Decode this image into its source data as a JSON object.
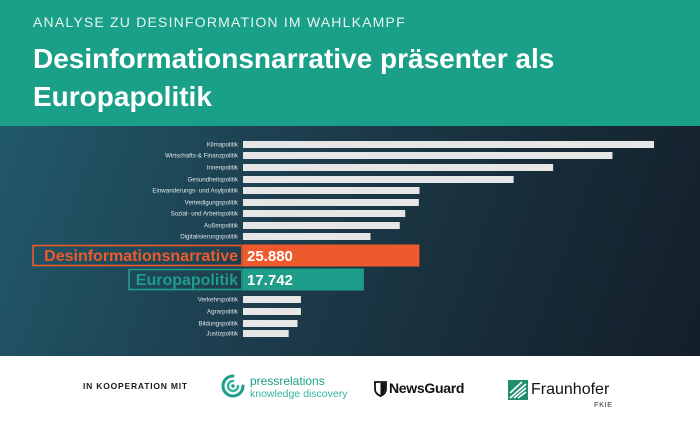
{
  "header": {
    "kicker": "ANALYSE ZU DESINFORMATION IM WAHLKAMPF",
    "title": "Desinformationsnarrative präsenter als Europapolitik"
  },
  "colors": {
    "header_bg": "#1a9f88",
    "panel_bg": "#1c3a48",
    "bar": "#e6e6e6",
    "highlight_disinfo": "#ee5a2b",
    "highlight_europa": "#1e9e8a",
    "category_label": "#dfe6e9"
  },
  "chart_data": {
    "type": "bar",
    "orientation": "horizontal",
    "categories": [
      "Klimapolitik",
      "Wirtschafts-& Finanzpolitik",
      "Innenpolitik",
      "Gesundheitspolitik",
      "Einwanderungs- und Asylpolitik",
      "Verteidigungspolitik",
      "Sozial- und Arbeitspolitik",
      "Außenpolitik",
      "Digitalisierungspolitik",
      "Desinformationsnarrative",
      "Europapolitik",
      "Verkehrspolitik",
      "Agrarpolitik",
      "Bildungspolitik",
      "Justizpolitik"
    ],
    "values": [
      60300,
      54200,
      45500,
      39700,
      25900,
      25800,
      23800,
      23000,
      18700,
      25880,
      17742,
      8500,
      8500,
      8000,
      6700
    ],
    "highlighted": [
      {
        "category": "Desinformationsnarrative",
        "value_label": "25.880",
        "color": "#ee5a2b"
      },
      {
        "category": "Europapolitik",
        "value_label": "17.742",
        "color": "#1e9e8a"
      }
    ],
    "grid": false,
    "axes_visible": false
  },
  "footer": {
    "cooperation_label": "IN KOOPERATION MIT",
    "partners": {
      "pressrelations": {
        "name": "pressrelations",
        "tagline": "knowledge discovery"
      },
      "newsguard": {
        "name": "NewsGuard"
      },
      "fraunhofer": {
        "name": "Fraunhofer",
        "unit": "FKIE"
      }
    }
  }
}
